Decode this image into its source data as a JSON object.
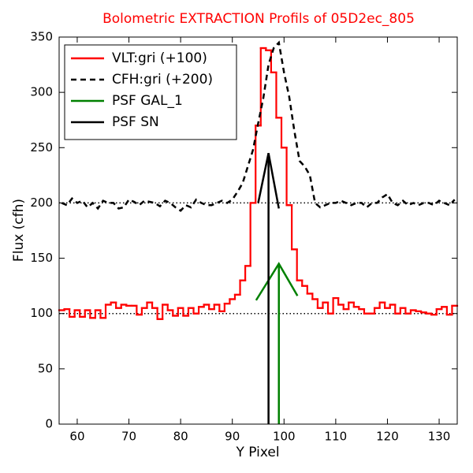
{
  "chart_data": {
    "type": "line",
    "title": "Bolometric EXTRACTION Profils of 05D2ec_805",
    "xlabel": "Y Pixel",
    "ylabel": "Flux (cfh)",
    "xlim": [
      56.5,
      133.5
    ],
    "ylim": [
      0,
      350
    ],
    "xticks": [
      60,
      70,
      80,
      90,
      100,
      110,
      120,
      130
    ],
    "yticks": [
      0,
      50,
      100,
      150,
      200,
      250,
      300,
      350
    ],
    "hlines": [
      100,
      200
    ],
    "legend": "upper left",
    "series": [
      {
        "name": "VLT:gri (+100)",
        "color": "#ff0000",
        "style": "steps",
        "x": [
          57,
          58,
          59,
          60,
          61,
          62,
          63,
          64,
          65,
          66,
          67,
          68,
          69,
          70,
          71,
          72,
          73,
          74,
          75,
          76,
          77,
          78,
          79,
          80,
          81,
          82,
          83,
          84,
          85,
          86,
          87,
          88,
          89,
          90,
          91,
          92,
          93,
          94,
          95,
          96,
          97,
          98,
          99,
          100,
          101,
          102,
          103,
          104,
          105,
          106,
          107,
          108,
          109,
          110,
          111,
          112,
          113,
          114,
          115,
          116,
          117,
          118,
          119,
          120,
          121,
          122,
          123,
          124,
          125,
          126,
          127,
          128,
          129,
          130,
          131,
          132,
          133
        ],
        "values": [
          103,
          104,
          97,
          103,
          97,
          103,
          96,
          103,
          96,
          108,
          110,
          105,
          108,
          107,
          107,
          99,
          105,
          110,
          105,
          95,
          108,
          103,
          98,
          105,
          98,
          105,
          100,
          106,
          108,
          104,
          108,
          102,
          109,
          113,
          117,
          130,
          143,
          200,
          270,
          340,
          338,
          318,
          277,
          250,
          198,
          158,
          130,
          125,
          118,
          113,
          105,
          110,
          100,
          114,
          108,
          104,
          110,
          106,
          104,
          100,
          100,
          105,
          110,
          105,
          108,
          100,
          105,
          100,
          103,
          102,
          101,
          100,
          99,
          104,
          106,
          99,
          107
        ]
      },
      {
        "name": "CFH:gri (+200)",
        "color": "#000000",
        "style": "dashed",
        "x": [
          57,
          58,
          59,
          60,
          61,
          62,
          63,
          64,
          65,
          66,
          67,
          68,
          69,
          70,
          71,
          72,
          73,
          74,
          75,
          76,
          77,
          78,
          79,
          80,
          81,
          82,
          83,
          84,
          85,
          86,
          87,
          88,
          89,
          90,
          91,
          92,
          93,
          94,
          95,
          96,
          97,
          98,
          99,
          100,
          101,
          102,
          103,
          104,
          105,
          106,
          107,
          108,
          109,
          110,
          111,
          112,
          113,
          114,
          115,
          116,
          117,
          118,
          119,
          120,
          121,
          122,
          123,
          124,
          125,
          126,
          127,
          128,
          129,
          130,
          131,
          132,
          133
        ],
        "values": [
          200,
          198,
          204,
          200,
          202,
          196,
          200,
          195,
          202,
          200,
          200,
          195,
          196,
          203,
          201,
          198,
          202,
          201,
          200,
          197,
          202,
          200,
          196,
          193,
          198,
          196,
          203,
          200,
          198,
          198,
          200,
          202,
          200,
          203,
          210,
          218,
          233,
          248,
          272,
          295,
          325,
          340,
          345,
          318,
          296,
          265,
          238,
          233,
          225,
          200,
          196,
          198,
          200,
          200,
          202,
          200,
          198,
          200,
          200,
          196,
          200,
          200,
          205,
          208,
          200,
          198,
          202,
          198,
          200,
          198,
          200,
          200,
          198,
          202,
          200,
          198,
          203
        ]
      },
      {
        "name": "PSF GAL_1",
        "color": "#008000",
        "style": "stem",
        "x": [
          94.6,
          99,
          102.6
        ],
        "values": [
          112,
          145,
          116
        ]
      },
      {
        "name": "PSF SN",
        "color": "#000000",
        "style": "stem",
        "x": [
          95,
          97,
          99
        ],
        "values": [
          200,
          245,
          195
        ]
      }
    ]
  }
}
